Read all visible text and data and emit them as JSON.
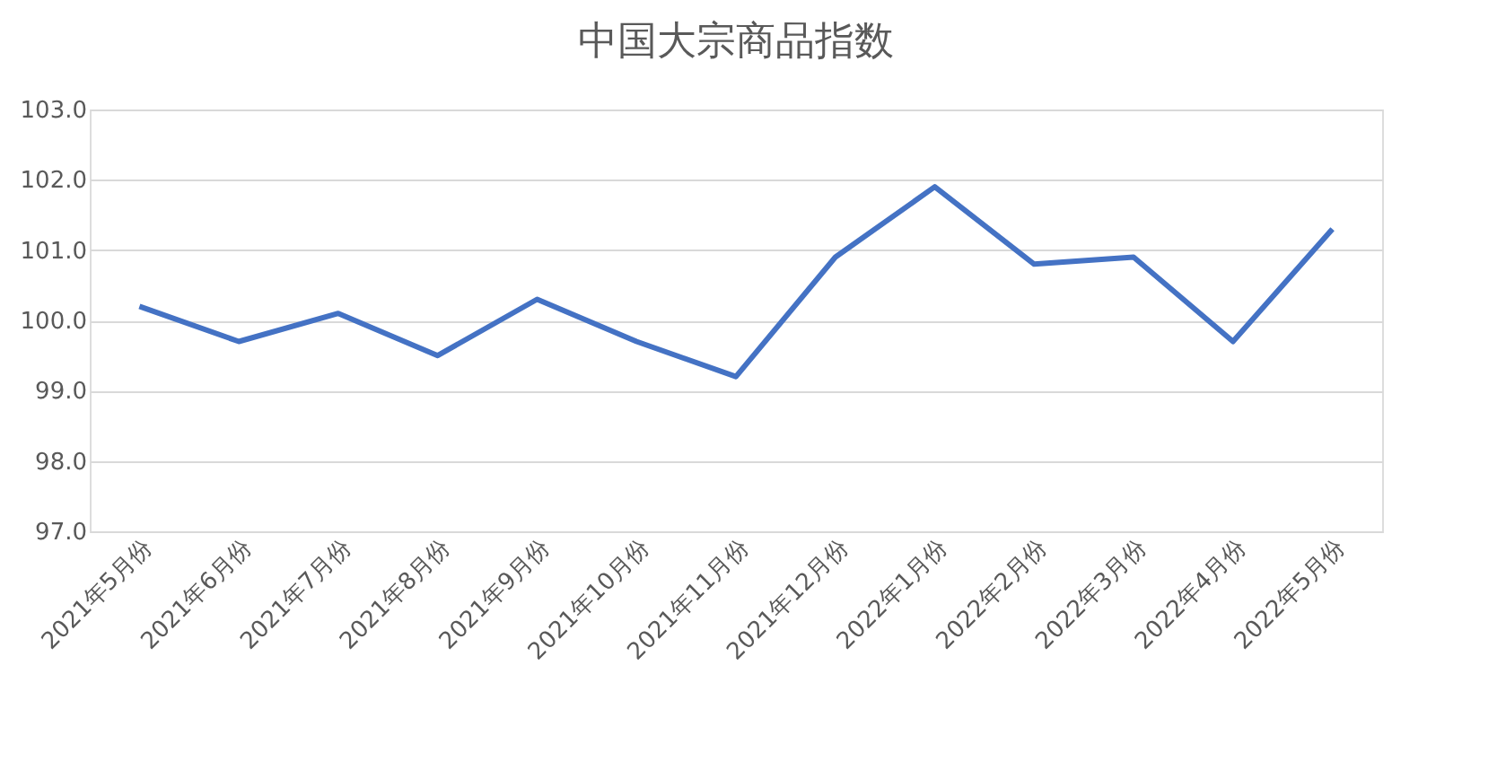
{
  "chart_data": {
    "type": "line",
    "title": "中国大宗商品指数",
    "categories": [
      "2021年5月份",
      "2021年6月份",
      "2021年7月份",
      "2021年8月份",
      "2021年9月份",
      "2021年10月份",
      "2021年11月份",
      "2021年12月份",
      "2022年1月份",
      "2022年2月份",
      "2022年3月份",
      "2022年4月份",
      "2022年5月份"
    ],
    "series": [
      {
        "color": "#4472c4",
        "values": [
          100.2,
          99.7,
          100.1,
          99.5,
          100.3,
          99.7,
          99.2,
          100.9,
          101.9,
          100.8,
          100.9,
          99.7,
          101.3
        ]
      }
    ],
    "ylim": [
      97,
      103
    ],
    "yticks": [
      {
        "value": 97,
        "label": "97.0"
      },
      {
        "value": 98,
        "label": "98.0"
      },
      {
        "value": 99,
        "label": "99.0"
      },
      {
        "value": 100,
        "label": "100.0"
      },
      {
        "value": 101,
        "label": "101.0"
      },
      {
        "value": 102,
        "label": "102.0"
      },
      {
        "value": 103,
        "label": "103.0"
      }
    ],
    "grid": "y",
    "legend": false,
    "marker": "none",
    "line_style": "solid"
  }
}
